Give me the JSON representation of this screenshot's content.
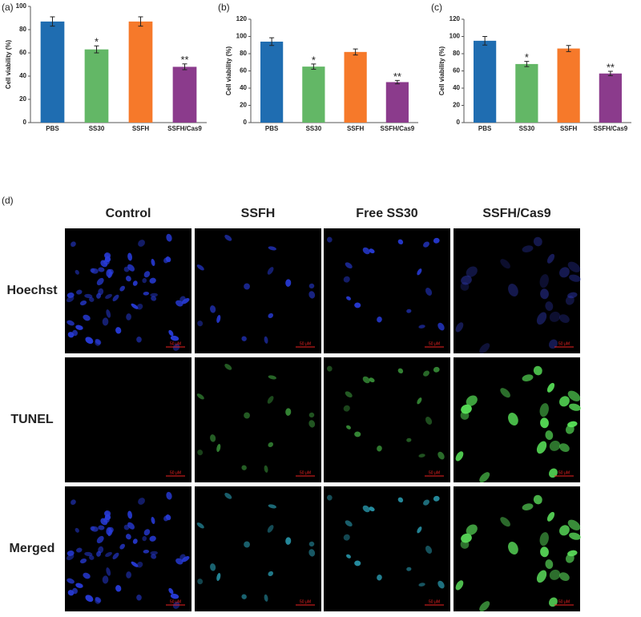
{
  "chart_data": [
    {
      "type": "bar",
      "panel": "(a)",
      "ylabel": "Cell viability (%)",
      "categories": [
        "PBS",
        "SS30",
        "SSFH",
        "SSFH/Cas9"
      ],
      "values": [
        87,
        63,
        87,
        48
      ],
      "errors": [
        4,
        3,
        4,
        2.5
      ],
      "annotations": [
        null,
        "*",
        null,
        "**"
      ],
      "colors": [
        "#1f6db1",
        "#63b766",
        "#f6792a",
        "#8b3b8c"
      ],
      "ylim": [
        0,
        100
      ],
      "yticks": [
        0,
        20,
        40,
        60,
        80,
        100
      ]
    },
    {
      "type": "bar",
      "panel": "(b)",
      "ylabel": "Cell viability (%)",
      "categories": [
        "PBS",
        "SS30",
        "SSFH",
        "SSFH/Cas9"
      ],
      "values": [
        94,
        65,
        82,
        47
      ],
      "errors": [
        4.5,
        3,
        3.5,
        2
      ],
      "annotations": [
        null,
        "*",
        null,
        "**"
      ],
      "colors": [
        "#1f6db1",
        "#63b766",
        "#f6792a",
        "#8b3b8c"
      ],
      "ylim": [
        0,
        120
      ],
      "yticks": [
        0,
        20,
        40,
        60,
        80,
        100,
        120
      ]
    },
    {
      "type": "bar",
      "panel": "(c)",
      "ylabel": "Cell viability (%)",
      "categories": [
        "PBS",
        "SS30",
        "SSFH",
        "SSFH/Cas9"
      ],
      "values": [
        95,
        68,
        86,
        57
      ],
      "errors": [
        5,
        3,
        3.5,
        2.5
      ],
      "annotations": [
        null,
        "*",
        null,
        "**"
      ],
      "colors": [
        "#1f6db1",
        "#63b766",
        "#f6792a",
        "#8b3b8c"
      ],
      "ylim": [
        0,
        120
      ],
      "yticks": [
        0,
        20,
        40,
        60,
        80,
        100,
        120
      ]
    }
  ],
  "panel_d": {
    "label": "(d)",
    "columns": [
      "Control",
      "SSFH",
      "Free SS30",
      "SSFH/Cas9"
    ],
    "rows": [
      "Hoechst",
      "TUNEL",
      "Merged"
    ],
    "scale_bar": "50 μM"
  }
}
